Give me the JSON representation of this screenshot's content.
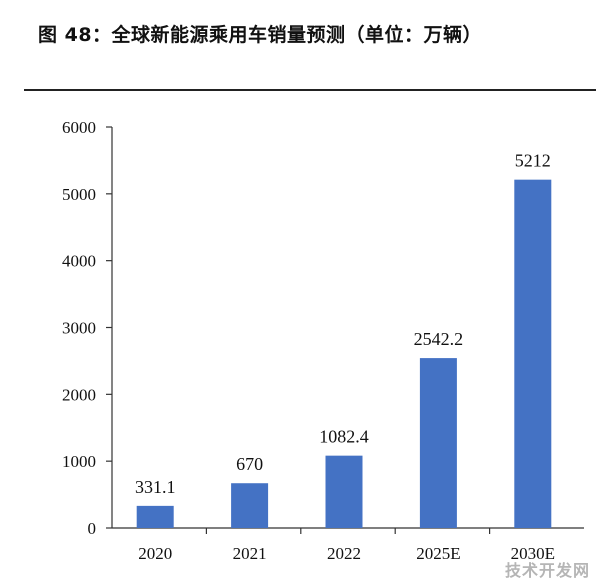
{
  "title": "图 48：全球新能源乘用车销量预测（单位：万辆）",
  "watermark": "技术开发网",
  "colors": {
    "bar": "#4472C4",
    "axis": "#333333",
    "text": "#111111"
  },
  "chart_data": {
    "type": "bar",
    "title": "图 48：全球新能源乘用车销量预测（单位：万辆）",
    "xlabel": "",
    "ylabel": "",
    "categories": [
      "2020",
      "2021",
      "2022",
      "2025E",
      "2030E"
    ],
    "values": [
      331.1,
      670,
      1082.4,
      2542.2,
      5212
    ],
    "value_labels": [
      "331.1",
      "670",
      "1082.4",
      "2542.2",
      "5212"
    ],
    "ylim": [
      0,
      6000
    ],
    "yticks": [
      0,
      1000,
      2000,
      3000,
      4000,
      5000,
      6000
    ],
    "ytick_labels": [
      "0",
      "1000",
      "2000",
      "3000",
      "4000",
      "5000",
      "6000"
    ],
    "grid": false,
    "legend": "none"
  }
}
